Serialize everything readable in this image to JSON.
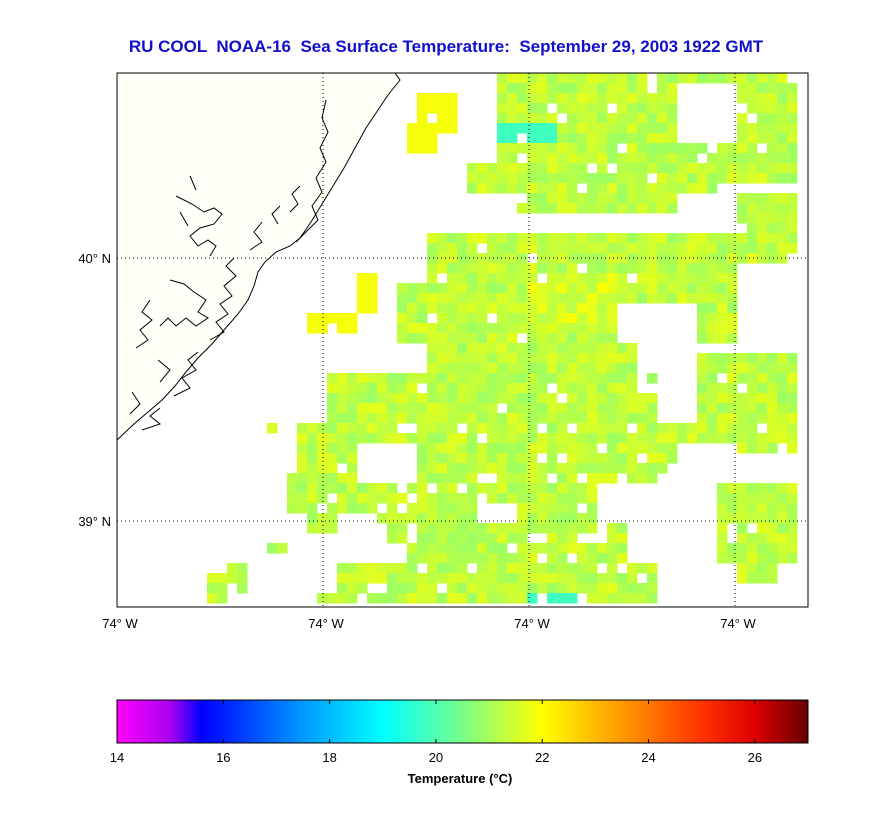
{
  "title": "RU COOL  NOAA-16  Sea Surface Temperature:  September 29, 2003 1922 GMT",
  "map": {
    "lat_labels": [
      {
        "text": "40° N",
        "lat": 40.0
      },
      {
        "text": "39° N",
        "lat": 39.0
      }
    ],
    "lon_labels": [
      "74° W",
      "74° W",
      "74° W",
      "74° W"
    ],
    "grid": "dotted",
    "land_color": "#fffff8",
    "coast_color": "#000000"
  },
  "colorbar": {
    "title": "Temperature (°C)",
    "min": 14,
    "max": 27,
    "tick_values": [
      14,
      16,
      18,
      20,
      22,
      24,
      26
    ],
    "tick_labels": [
      "14",
      "16",
      "18",
      "20",
      "22",
      "24",
      "26"
    ],
    "stops": [
      {
        "v": 14,
        "c": "#ff00ff"
      },
      {
        "v": 15,
        "c": "#aa00ee"
      },
      {
        "v": 15.6,
        "c": "#0000ff"
      },
      {
        "v": 17.5,
        "c": "#0099ff"
      },
      {
        "v": 19,
        "c": "#00ffff"
      },
      {
        "v": 20.3,
        "c": "#66ff99"
      },
      {
        "v": 22,
        "c": "#ffff00"
      },
      {
        "v": 23.5,
        "c": "#ff9900"
      },
      {
        "v": 25,
        "c": "#ff3300"
      },
      {
        "v": 26,
        "c": "#dd0000"
      },
      {
        "v": 27,
        "c": "#660000"
      }
    ]
  },
  "chart_data": {
    "type": "heatmap",
    "variable": "Sea Surface Temperature",
    "units": "°C",
    "value_range": [
      14,
      27
    ],
    "typical_value": 21,
    "notes": "Mostly 20.5–22 °C offshore; cooler patches ~19.8 °C in the north and south."
  }
}
